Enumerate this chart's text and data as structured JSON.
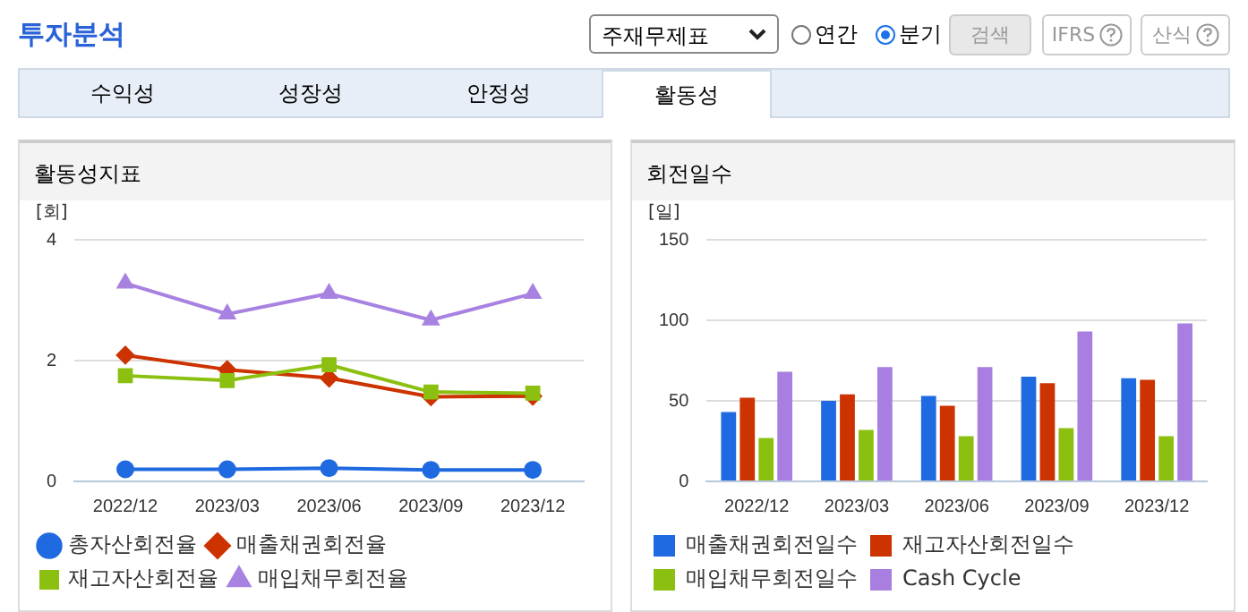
{
  "chart_data": [
    {
      "type": "other",
      "title": "투자분석",
      "annotations": [
        "주재무제표",
        "연간",
        "분기",
        "검색",
        "IFRS",
        "산식",
        "수익성",
        "성장성",
        "안정성",
        "활동성"
      ]
    },
    {
      "type": "line",
      "title": "활동성지표",
      "ylabel": "[회]",
      "categories": [
        "2022/12",
        "2023/03",
        "2023/06",
        "2023/09",
        "2023/12"
      ],
      "ylim": [
        0,
        4
      ],
      "yticks": [
        0,
        2,
        4
      ],
      "grid": "y",
      "legend": "bottom",
      "series": [
        {
          "name": "총자산회전율",
          "color": "#1f6ae0",
          "marker": "circle",
          "values": [
            0.2,
            0.2,
            0.22,
            0.19,
            0.19
          ]
        },
        {
          "name": "매출채권회전율",
          "color": "#cc3300",
          "marker": "diamond",
          "values": [
            2.09,
            1.85,
            1.71,
            1.4,
            1.41
          ]
        },
        {
          "name": "재고자산회전율",
          "color": "#8cc010",
          "marker": "square",
          "values": [
            1.75,
            1.67,
            1.93,
            1.48,
            1.46
          ]
        },
        {
          "name": "매입채무회전율",
          "color": "#a882e0",
          "marker": "triangle",
          "values": [
            3.28,
            2.77,
            3.11,
            2.67,
            3.11
          ]
        }
      ]
    },
    {
      "type": "bar",
      "title": "회전일수",
      "ylabel": "[일]",
      "categories": [
        "2022/12",
        "2023/03",
        "2023/06",
        "2023/09",
        "2023/12"
      ],
      "ylim": [
        0,
        150
      ],
      "yticks": [
        0,
        50,
        100,
        150
      ],
      "grid": "y",
      "legend": "bottom",
      "series": [
        {
          "name": "매출채권회전일수",
          "color": "#1f6ae0",
          "values": [
            43,
            50,
            53,
            65,
            64
          ]
        },
        {
          "name": "재고자산회전일수",
          "color": "#cc3300",
          "values": [
            52,
            54,
            47,
            61,
            63
          ]
        },
        {
          "name": "매입채무회전일수",
          "color": "#8cc010",
          "values": [
            27,
            32,
            28,
            33,
            28
          ]
        },
        {
          "name": "Cash Cycle",
          "color": "#a87ee0",
          "values": [
            68,
            71,
            71,
            93,
            98
          ]
        }
      ]
    }
  ]
}
